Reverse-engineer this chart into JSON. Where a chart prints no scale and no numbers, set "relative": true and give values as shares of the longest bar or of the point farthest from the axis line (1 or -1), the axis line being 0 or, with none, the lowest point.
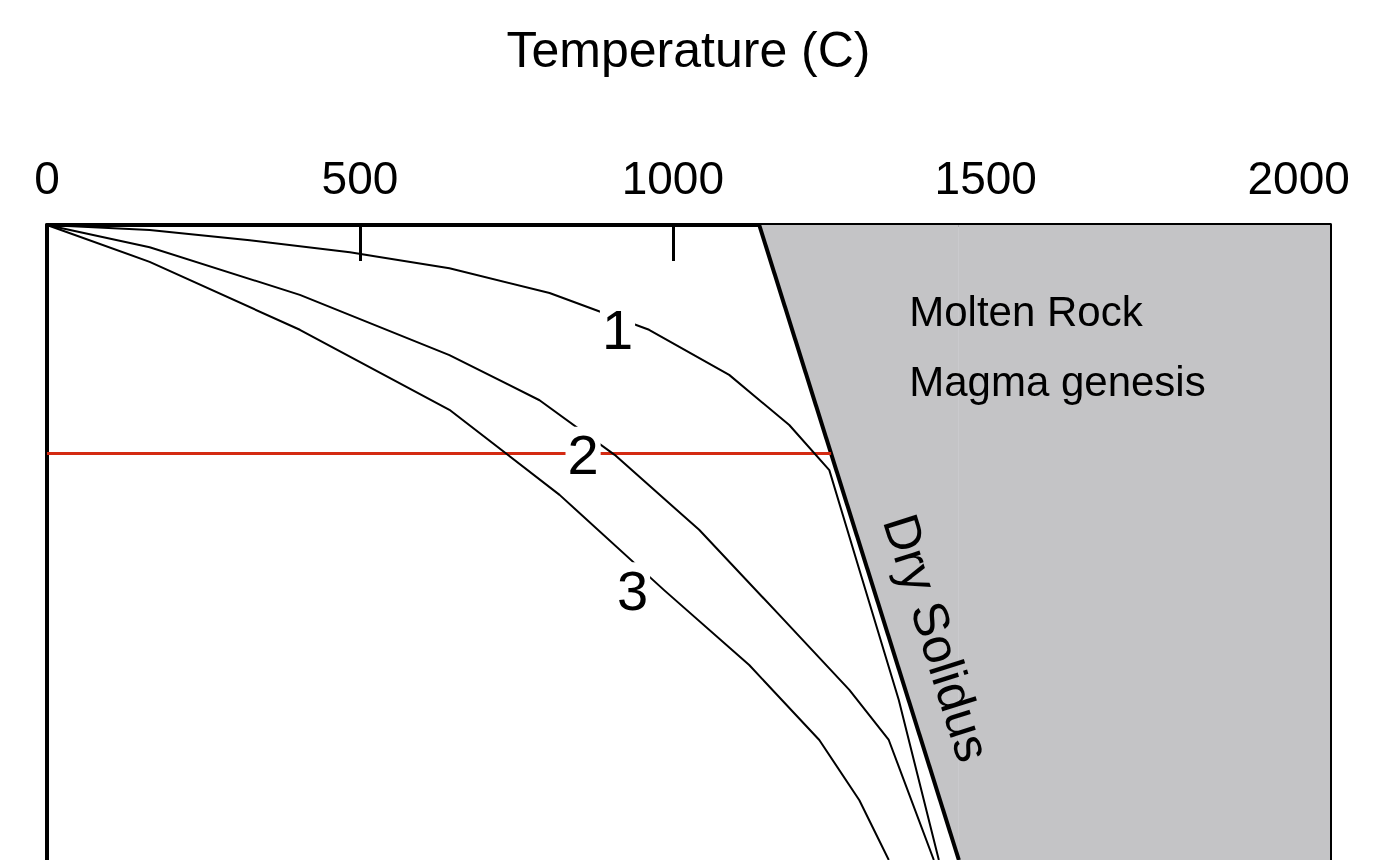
{
  "chart_data": {
    "type": "line",
    "xlabel": "Temperature (C)",
    "relative": true,
    "xlim": [
      0,
      2050
    ],
    "xticks": [
      0,
      500,
      1000,
      1500,
      2000
    ],
    "grid": false,
    "marker": "none",
    "line_style": "solid",
    "series": [
      {
        "name": "1",
        "color": "#000000",
        "x": [
          0,
          164,
          324,
          484,
          643,
          803,
          962,
          1090,
          1186,
          1250,
          1298,
          1361,
          1425
        ],
        "values": [
          0,
          -0.008,
          -0.024,
          -0.043,
          -0.068,
          -0.107,
          -0.165,
          -0.236,
          -0.315,
          -0.386,
          -0.543,
          -0.748,
          -1
        ]
      },
      {
        "name": "2",
        "color": "#000000",
        "x": [
          0,
          164,
          404,
          643,
          787,
          907,
          1042,
          1170,
          1282,
          1345,
          1417
        ],
        "values": [
          0,
          -0.035,
          -0.11,
          -0.205,
          -0.276,
          -0.362,
          -0.48,
          -0.614,
          -0.732,
          -0.811,
          -1
        ]
      },
      {
        "name": "3",
        "color": "#000000",
        "x": [
          0,
          164,
          404,
          643,
          819,
          986,
          1122,
          1234,
          1298,
          1345
        ],
        "values": [
          0,
          -0.058,
          -0.165,
          -0.291,
          -0.425,
          -0.575,
          -0.693,
          -0.811,
          -0.906,
          -1
        ]
      },
      {
        "name": "Dry Solidus",
        "type": "area",
        "color": "#c4c4c6",
        "x": [
          1138,
          1457
        ],
        "values": [
          0,
          -1
        ]
      }
    ],
    "bands": [
      {
        "axis": "x",
        "from": 1457,
        "to": 2050,
        "color": "#c4c4c6"
      }
    ],
    "ref_lines": [
      {
        "axis": "y",
        "value": -0.36,
        "color": "#d42a12"
      }
    ],
    "annotations": [
      "Molten Rock",
      "Magma genesis"
    ]
  }
}
